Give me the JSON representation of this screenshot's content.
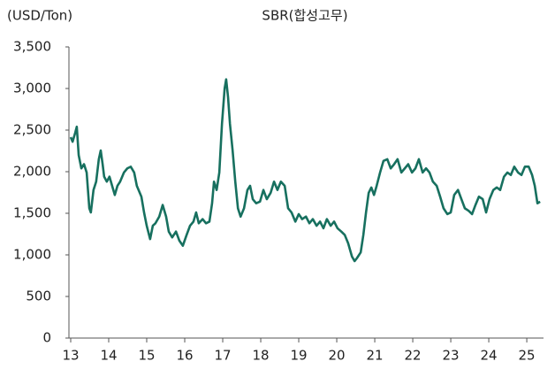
{
  "chart_data": {
    "type": "line",
    "title": "SBR(합성고무)",
    "y_label": "(USD/Ton)",
    "x": [
      13.0,
      13.05,
      13.12,
      13.16,
      13.21,
      13.28,
      13.35,
      13.42,
      13.49,
      13.53,
      13.6,
      13.67,
      13.74,
      13.79,
      13.84,
      13.88,
      13.95,
      14.02,
      14.09,
      14.16,
      14.23,
      14.3,
      14.4,
      14.49,
      14.58,
      14.67,
      14.74,
      14.86,
      14.93,
      15.0,
      15.09,
      15.16,
      15.23,
      15.33,
      15.42,
      15.51,
      15.58,
      15.67,
      15.77,
      15.86,
      15.95,
      16.05,
      16.14,
      16.23,
      16.3,
      16.37,
      16.47,
      16.56,
      16.65,
      16.72,
      16.77,
      16.84,
      16.91,
      16.98,
      17.05,
      17.09,
      17.14,
      17.19,
      17.26,
      17.33,
      17.4,
      17.47,
      17.56,
      17.65,
      17.72,
      17.79,
      17.88,
      17.98,
      18.07,
      18.16,
      18.26,
      18.35,
      18.44,
      18.53,
      18.63,
      18.72,
      18.81,
      18.91,
      19.0,
      19.09,
      19.19,
      19.28,
      19.37,
      19.47,
      19.56,
      19.65,
      19.74,
      19.84,
      19.93,
      20.02,
      20.12,
      20.21,
      20.3,
      20.4,
      20.47,
      20.53,
      20.63,
      20.7,
      20.77,
      20.84,
      20.91,
      20.98,
      21.05,
      21.14,
      21.23,
      21.33,
      21.42,
      21.51,
      21.6,
      21.7,
      21.79,
      21.88,
      21.98,
      22.07,
      22.16,
      22.26,
      22.35,
      22.44,
      22.53,
      22.63,
      22.72,
      22.81,
      22.91,
      23.0,
      23.09,
      23.19,
      23.28,
      23.37,
      23.47,
      23.56,
      23.65,
      23.74,
      23.84,
      23.93,
      24.02,
      24.12,
      24.21,
      24.3,
      24.4,
      24.49,
      24.58,
      24.67,
      24.77,
      24.86,
      24.95,
      25.05,
      25.14,
      25.21,
      25.28,
      25.35
    ],
    "series": [
      {
        "name": "SBR",
        "color": "#17705f",
        "values": [
          2415,
          2360,
          2470,
          2540,
          2200,
          2040,
          2090,
          1990,
          1560,
          1510,
          1780,
          1880,
          2150,
          2255,
          2090,
          1940,
          1880,
          1940,
          1830,
          1720,
          1830,
          1880,
          1990,
          2040,
          2060,
          1990,
          1830,
          1700,
          1510,
          1350,
          1190,
          1350,
          1380,
          1460,
          1600,
          1460,
          1280,
          1210,
          1280,
          1170,
          1110,
          1240,
          1350,
          1400,
          1510,
          1380,
          1430,
          1380,
          1400,
          1620,
          1880,
          1780,
          1990,
          2575,
          3000,
          3110,
          2895,
          2575,
          2255,
          1880,
          1560,
          1460,
          1560,
          1780,
          1830,
          1670,
          1620,
          1640,
          1780,
          1670,
          1745,
          1880,
          1780,
          1880,
          1830,
          1560,
          1510,
          1400,
          1490,
          1430,
          1460,
          1380,
          1430,
          1350,
          1400,
          1320,
          1430,
          1350,
          1400,
          1320,
          1280,
          1240,
          1140,
          980,
          925,
          960,
          1030,
          1240,
          1510,
          1745,
          1810,
          1720,
          1830,
          1990,
          2130,
          2150,
          2040,
          2090,
          2150,
          1990,
          2040,
          2090,
          1990,
          2040,
          2150,
          1990,
          2040,
          1990,
          1880,
          1830,
          1700,
          1560,
          1490,
          1510,
          1720,
          1780,
          1670,
          1560,
          1530,
          1490,
          1600,
          1700,
          1670,
          1510,
          1670,
          1780,
          1810,
          1780,
          1940,
          1990,
          1960,
          2060,
          1990,
          1960,
          2060,
          2060,
          1960,
          1830,
          1620,
          1640
        ]
      }
    ],
    "xlim": [
      13,
      25.44
    ],
    "xticks": [
      13,
      14,
      15,
      16,
      17,
      18,
      19,
      20,
      21,
      22,
      23,
      24,
      25
    ],
    "ylim": [
      0,
      3500
    ],
    "yticks": [
      0,
      500,
      {
        "value": 1000,
        "label": "1,000"
      },
      {
        "value": 1500,
        "label": "1,500"
      },
      {
        "value": 2000,
        "label": "2,000"
      },
      {
        "value": 2500,
        "label": "2,500"
      },
      {
        "value": 3000,
        "label": "3,000"
      },
      {
        "value": 3500,
        "label": "3,500"
      }
    ],
    "grid": false
  }
}
